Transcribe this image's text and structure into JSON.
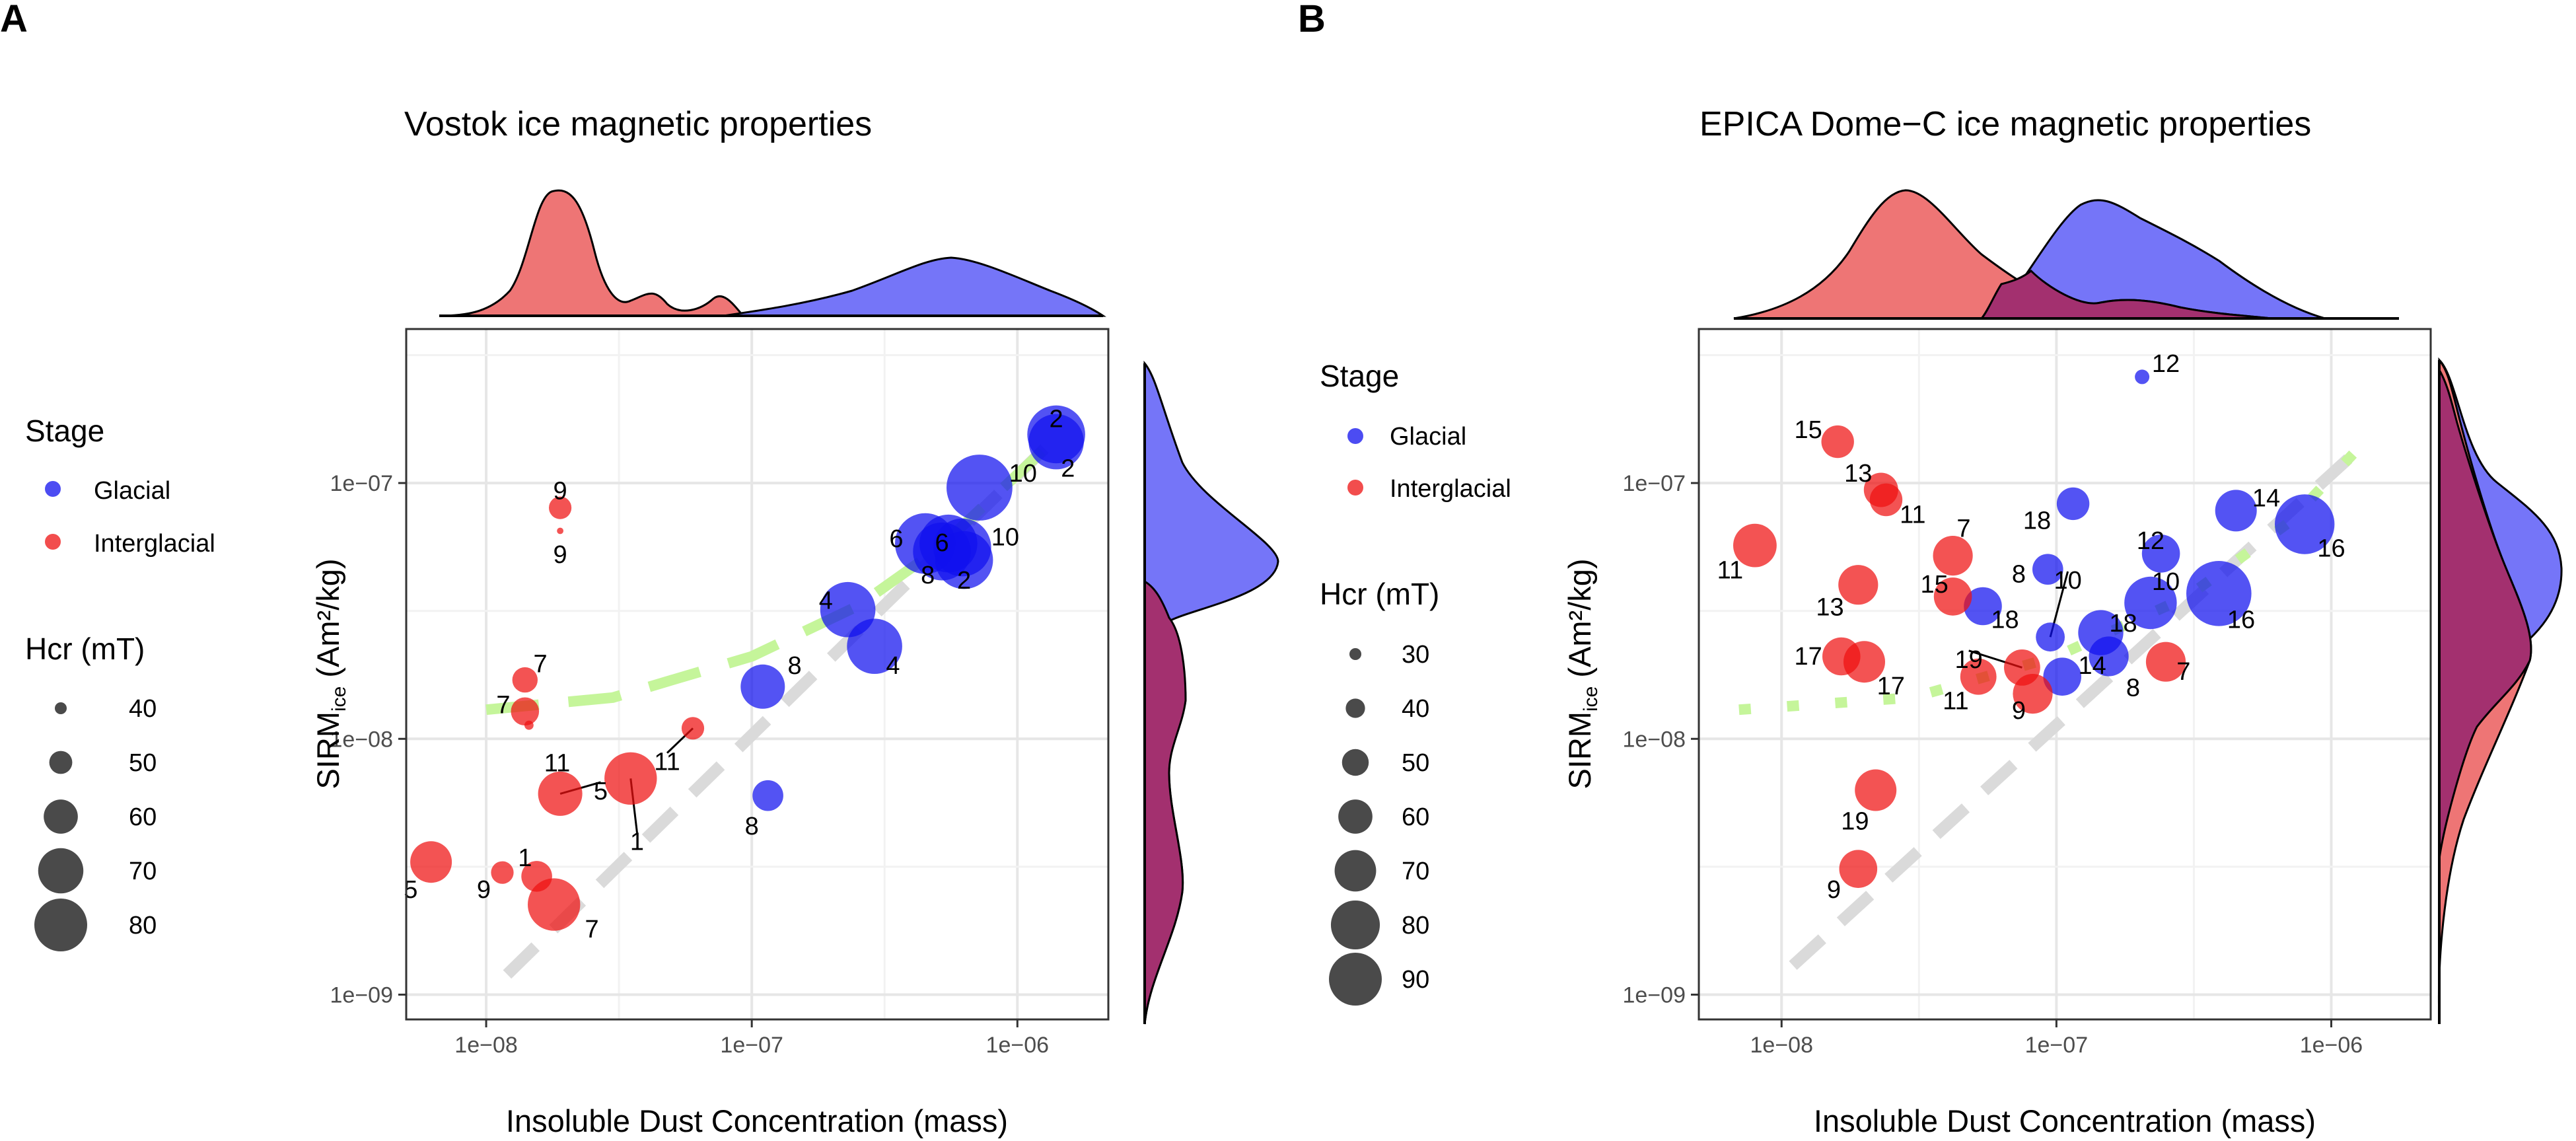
{
  "figure": {
    "panel_a_label": "A",
    "panel_b_label": "B"
  },
  "colors": {
    "glacial": "#1010ee",
    "interglacial": "#ee1111",
    "glacial_density": "#7575f8",
    "interglacial_density": "#ee7575",
    "overlap_density": "#a3306f",
    "green_fit": "#c5f59a",
    "grey_line": "#dadada"
  },
  "chart_data": [
    {
      "type": "scatter",
      "panel": "A",
      "title": "Vostok ice magnetic properties",
      "xlabel": "Insoluble Dust Concentration (mass)",
      "ylabel_main": "SIRM",
      "ylabel_sub": "ice",
      "ylabel_unit": " (Am²/kg)",
      "x_scale": "log10",
      "y_scale": "log10",
      "xlim": [
        5e-09,
        2.2e-06
      ],
      "ylim": [
        8e-10,
        4e-07
      ],
      "x_ticks": [
        {
          "value": 1e-08,
          "label": "1e−08"
        },
        {
          "value": 1e-07,
          "label": "1e−07"
        },
        {
          "value": 1e-06,
          "label": "1e−06"
        }
      ],
      "y_ticks": [
        {
          "value": 1e-09,
          "label": "1e−09"
        },
        {
          "value": 1e-08,
          "label": "1e−08"
        },
        {
          "value": 1e-07,
          "label": "1e−07"
        }
      ],
      "legend": {
        "stage_title": "Stage",
        "stage_entries": [
          "Glacial",
          "Interglacial"
        ],
        "size_title": "Hcr (mT)",
        "size_entries": [
          40,
          50,
          60,
          70,
          80
        ]
      },
      "hcr_range": [
        40,
        80
      ],
      "grey_line": {
        "x": [
          1.2e-08,
          1.3e-06
        ],
        "y": [
          1.2e-09,
          1.4e-07
        ]
      },
      "green_fit": {
        "x": [
          1e-08,
          3e-08,
          1e-07,
          2.5e-07,
          5e-07,
          1.4e-06
        ],
        "y": [
          1.3e-08,
          1.45e-08,
          2.1e-08,
          3.3e-08,
          5.5e-08,
          1.5e-07
        ]
      },
      "series": [
        {
          "name": "Glacial",
          "points": [
            {
              "x": 1.4e-06,
              "y": 1.55e-07,
              "hcr": 72,
              "label": "2",
              "lx": 1.4e-06,
              "ly": 1.8e-07
            },
            {
              "x": 1.4e-06,
              "y": 1.45e-07,
              "hcr": 70,
              "label": "2",
              "lx": 1.55e-06,
              "ly": 1.15e-07
            },
            {
              "x": 7.2e-07,
              "y": 9.6e-08,
              "hcr": 78,
              "label": "10",
              "lx": 1.05e-06,
              "ly": 1.1e-07
            },
            {
              "x": 6.2e-07,
              "y": 5.6e-08,
              "hcr": 72,
              "label": "10",
              "lx": 9e-07,
              "ly": 6.2e-08
            },
            {
              "x": 4.5e-07,
              "y": 5.8e-08,
              "hcr": 74,
              "label": "6",
              "lx": 3.5e-07,
              "ly": 6.1e-08
            },
            {
              "x": 5.5e-07,
              "y": 5.8e-08,
              "hcr": 72,
              "label": "6",
              "lx": 5.2e-07,
              "ly": 5.9e-08
            },
            {
              "x": 5.2e-07,
              "y": 5.4e-08,
              "hcr": 72,
              "label": "8",
              "lx": 4.6e-07,
              "ly": 4.4e-08
            },
            {
              "x": 6.3e-07,
              "y": 5e-08,
              "hcr": 72,
              "label": "2",
              "lx": 6.3e-07,
              "ly": 4.2e-08
            },
            {
              "x": 2.3e-07,
              "y": 3.2e-08,
              "hcr": 70,
              "label": "4",
              "lx": 1.9e-07,
              "ly": 3.5e-08
            },
            {
              "x": 2.9e-07,
              "y": 2.3e-08,
              "hcr": 70,
              "label": "4",
              "lx": 3.4e-07,
              "ly": 1.95e-08
            },
            {
              "x": 1.1e-07,
              "y": 1.6e-08,
              "hcr": 62,
              "label": "8",
              "lx": 1.45e-07,
              "ly": 1.95e-08
            },
            {
              "x": 1.15e-07,
              "y": 6e-09,
              "hcr": 52,
              "label": "8",
              "lx": 1e-07,
              "ly": 4.6e-09
            }
          ]
        },
        {
          "name": "Interglacial",
          "points": [
            {
              "x": 1.9e-08,
              "y": 8e-08,
              "hcr": 46,
              "label": "9",
              "lx": 1.9e-08,
              "ly": 9.4e-08
            },
            {
              "x": 1.9e-08,
              "y": 6.5e-08,
              "hcr": 34,
              "label": "9",
              "lx": 1.9e-08,
              "ly": 5.3e-08
            },
            {
              "x": 1.4e-08,
              "y": 1.7e-08,
              "hcr": 48,
              "label": "7",
              "lx": 1.6e-08,
              "ly": 1.98e-08
            },
            {
              "x": 1.4e-08,
              "y": 1.28e-08,
              "hcr": 50,
              "label": "7",
              "lx": 1.16e-08,
              "ly": 1.37e-08
            },
            {
              "x": 1.45e-08,
              "y": 1.13e-08,
              "hcr": 36,
              "label": "",
              "lx": 0,
              "ly": 0
            },
            {
              "x": 6e-08,
              "y": 1.1e-08,
              "hcr": 46,
              "label": "11",
              "lx": 4.8e-08,
              "ly": 8.2e-09
            },
            {
              "x": 1.9e-08,
              "y": 6.1e-09,
              "hcr": 62,
              "label": "11",
              "lx": 1.85e-08,
              "ly": 8.1e-09
            },
            {
              "x": 3.5e-08,
              "y": 7e-09,
              "hcr": 68,
              "label": "1",
              "lx": 3.7e-08,
              "ly": 4e-09
            },
            {
              "x": 1.9e-08,
              "y": 6.1e-09,
              "hcr": 0,
              "label": "5",
              "lx": 2.7e-08,
              "ly": 6.3e-09
            },
            {
              "x": 6.2e-09,
              "y": 3.3e-09,
              "hcr": 60,
              "label": "5",
              "lx": 5.2e-09,
              "ly": 2.6e-09
            },
            {
              "x": 1.15e-08,
              "y": 3e-09,
              "hcr": 46,
              "label": "9",
              "lx": 9.8e-09,
              "ly": 2.6e-09
            },
            {
              "x": 1.55e-08,
              "y": 2.9e-09,
              "hcr": 52,
              "label": "1",
              "lx": 1.4e-08,
              "ly": 3.45e-09
            },
            {
              "x": 1.8e-08,
              "y": 2.25e-09,
              "hcr": 68,
              "label": "7",
              "lx": 2.5e-08,
              "ly": 1.82e-09
            }
          ]
        }
      ]
    },
    {
      "type": "scatter",
      "panel": "B",
      "title": "EPICA Dome−C ice magnetic properties",
      "xlabel": "Insoluble Dust Concentration (mass)",
      "ylabel_main": "SIRM",
      "ylabel_sub": "ice",
      "ylabel_unit": " (Am²/kg)",
      "x_scale": "log10",
      "y_scale": "log10",
      "xlim": [
        5e-09,
        2.3e-06
      ],
      "ylim": [
        8e-10,
        4e-07
      ],
      "x_ticks": [
        {
          "value": 1e-08,
          "label": "1e−08"
        },
        {
          "value": 1e-07,
          "label": "1e−07"
        },
        {
          "value": 1e-06,
          "label": "1e−06"
        }
      ],
      "y_ticks": [
        {
          "value": 1e-09,
          "label": "1e−09"
        },
        {
          "value": 1e-08,
          "label": "1e−08"
        },
        {
          "value": 1e-07,
          "label": "1e−07"
        }
      ],
      "legend": {
        "stage_title": "Stage",
        "stage_entries": [
          "Glacial",
          "Interglacial"
        ],
        "size_title": "Hcr (mT)",
        "size_entries": [
          30,
          40,
          50,
          60,
          70,
          80,
          90
        ]
      },
      "hcr_range": [
        30,
        90
      ],
      "grey_line": {
        "x": [
          1.1e-08,
          1.3e-06
        ],
        "y": [
          1.3e-09,
          1.4e-07
        ]
      },
      "green_fit": {
        "x": [
          7e-09,
          3e-08,
          1e-07,
          3e-07,
          7e-07,
          1.4e-06
        ],
        "y": [
          1.3e-08,
          1.45e-08,
          2.1e-08,
          3.6e-08,
          7e-08,
          1.55e-07
        ]
      },
      "series": [
        {
          "name": "Glacial",
          "points": [
            {
              "x": 2.05e-07,
              "y": 2.6e-07,
              "hcr": 30,
              "label": "12",
              "lx": 2.5e-07,
              "ly": 2.95e-07
            },
            {
              "x": 1.15e-07,
              "y": 8.3e-08,
              "hcr": 50,
              "label": "18",
              "lx": 8.5e-08,
              "ly": 7.2e-08
            },
            {
              "x": 2.4e-07,
              "y": 5.3e-08,
              "hcr": 56,
              "label": "12",
              "lx": 2.2e-07,
              "ly": 6e-08
            },
            {
              "x": 4.5e-07,
              "y": 7.8e-08,
              "hcr": 60,
              "label": "14",
              "lx": 5.8e-07,
              "ly": 8.8e-08
            },
            {
              "x": 8e-07,
              "y": 6.9e-08,
              "hcr": 80,
              "label": "16",
              "lx": 1e-06,
              "ly": 5.6e-08
            },
            {
              "x": 9.3e-08,
              "y": 4.6e-08,
              "hcr": 48,
              "label": "8",
              "lx": 7.3e-08,
              "ly": 4.45e-08
            },
            {
              "x": 3.9e-07,
              "y": 3.7e-08,
              "hcr": 86,
              "label": "16",
              "lx": 4.7e-07,
              "ly": 2.95e-08
            },
            {
              "x": 2.2e-07,
              "y": 3.4e-08,
              "hcr": 72,
              "label": "10",
              "lx": 2.5e-07,
              "ly": 4.15e-08
            },
            {
              "x": 5.4e-08,
              "y": 3.3e-08,
              "hcr": 56,
              "label": "18",
              "lx": 6.5e-08,
              "ly": 2.95e-08
            },
            {
              "x": 9.5e-08,
              "y": 2.5e-08,
              "hcr": 46,
              "label": "10",
              "lx": 1.1e-07,
              "ly": 4.2e-08
            },
            {
              "x": 1.45e-07,
              "y": 2.6e-08,
              "hcr": 64,
              "label": "18",
              "lx": 1.75e-07,
              "ly": 2.85e-08
            },
            {
              "x": 1.55e-07,
              "y": 2.1e-08,
              "hcr": 58,
              "label": "8",
              "lx": 1.9e-07,
              "ly": 1.6e-08
            },
            {
              "x": 1.05e-07,
              "y": 1.75e-08,
              "hcr": 56,
              "label": "14",
              "lx": 1.35e-07,
              "ly": 1.95e-08
            }
          ]
        },
        {
          "name": "Interglacial",
          "points": [
            {
              "x": 1.6e-08,
              "y": 1.45e-07,
              "hcr": 50,
              "label": "15",
              "lx": 1.25e-08,
              "ly": 1.63e-07
            },
            {
              "x": 2.3e-08,
              "y": 9.4e-08,
              "hcr": 52,
              "label": "13",
              "lx": 1.9e-08,
              "ly": 1.1e-07
            },
            {
              "x": 2.4e-08,
              "y": 8.6e-08,
              "hcr": 50,
              "label": "11",
              "lx": 3e-08,
              "ly": 7.6e-08
            },
            {
              "x": 8e-09,
              "y": 5.7e-08,
              "hcr": 62,
              "label": "11",
              "lx": 6.5e-09,
              "ly": 4.6e-08
            },
            {
              "x": 4.2e-08,
              "y": 5.2e-08,
              "hcr": 58,
              "label": "7",
              "lx": 4.6e-08,
              "ly": 6.7e-08
            },
            {
              "x": 1.9e-08,
              "y": 4e-08,
              "hcr": 58,
              "label": "13",
              "lx": 1.5e-08,
              "ly": 3.3e-08
            },
            {
              "x": 4.2e-08,
              "y": 3.6e-08,
              "hcr": 56,
              "label": "15",
              "lx": 3.6e-08,
              "ly": 4.05e-08
            },
            {
              "x": 1.65e-08,
              "y": 2.1e-08,
              "hcr": 56,
              "label": "17",
              "lx": 1.25e-08,
              "ly": 2.12e-08
            },
            {
              "x": 2e-08,
              "y": 2e-08,
              "hcr": 60,
              "label": "17",
              "lx": 2.5e-08,
              "ly": 1.62e-08
            },
            {
              "x": 5.2e-08,
              "y": 1.75e-08,
              "hcr": 54,
              "label": "11",
              "lx": 4.3e-08,
              "ly": 1.42e-08
            },
            {
              "x": 7.5e-08,
              "y": 1.9e-08,
              "hcr": 54,
              "label": "19",
              "lx": 4.8e-08,
              "ly": 2.06e-08
            },
            {
              "x": 8.2e-08,
              "y": 1.5e-08,
              "hcr": 58,
              "label": "9",
              "lx": 7.3e-08,
              "ly": 1.3e-08
            },
            {
              "x": 2.5e-07,
              "y": 2e-08,
              "hcr": 58,
              "label": "7",
              "lx": 2.9e-07,
              "ly": 1.85e-08
            },
            {
              "x": 2.2e-08,
              "y": 6.3e-09,
              "hcr": 60,
              "label": "19",
              "lx": 1.85e-08,
              "ly": 4.8e-09
            },
            {
              "x": 1.9e-08,
              "y": 3.1e-09,
              "hcr": 56,
              "label": "9",
              "lx": 1.55e-08,
              "ly": 2.6e-09
            }
          ]
        }
      ]
    }
  ]
}
